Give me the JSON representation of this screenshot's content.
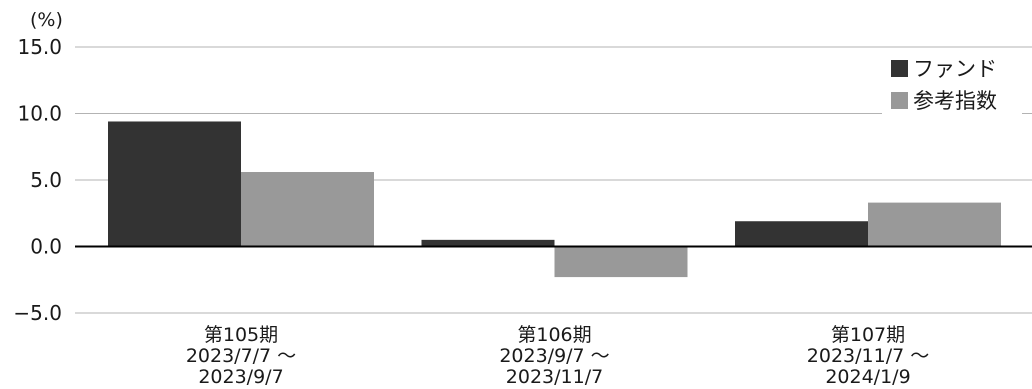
{
  "chart_data": {
    "type": "bar",
    "unit_label": "(%)",
    "y_ticks": [
      "15.0",
      "10.0",
      "5.0",
      "0.0",
      "−5.0"
    ],
    "ylim": [
      -5,
      15
    ],
    "grid": true,
    "legend_position": "top-right",
    "categories": [
      {
        "period": "第105期",
        "range_start": "2023/7/7 ～",
        "range_end": "2023/9/7"
      },
      {
        "period": "第106期",
        "range_start": "2023/9/7 ～",
        "range_end": "2023/11/7"
      },
      {
        "period": "第107期",
        "range_start": "2023/11/7 ～",
        "range_end": "2024/1/9"
      }
    ],
    "series": [
      {
        "name": "ファンド",
        "color": "#333333",
        "values": [
          9.4,
          0.5,
          1.9
        ]
      },
      {
        "name": "参考指数",
        "color": "#999999",
        "values": [
          5.6,
          -2.3,
          3.3
        ]
      }
    ]
  }
}
